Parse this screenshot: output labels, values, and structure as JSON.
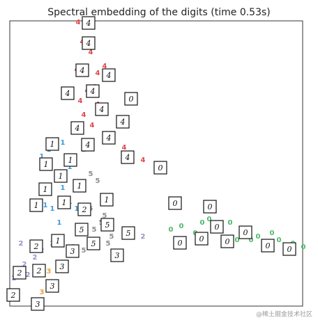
{
  "chart_data": {
    "type": "scatter",
    "title": "Spectral embedding of the digits (time 0.53s)",
    "xlim": [
      0,
      420
    ],
    "ylim": [
      0,
      410
    ],
    "series": [
      {
        "name": "4",
        "color": "#e0474c",
        "x": [
          98,
          116,
          96,
          126,
          111,
          126,
          106,
          94,
          164,
          191,
          118,
          101,
          121,
          136,
          104
        ],
        "y": [
          408,
          365,
          340,
          335,
          310,
          290,
          275,
          255,
          228,
          210,
          260,
          295,
          315,
          345,
          380
        ]
      },
      {
        "name": "1",
        "color": "#3a9ad9",
        "x": [
          76,
          56,
          46,
          86,
          66,
          76,
          56,
          86,
          96,
          51,
          106,
          71,
          61
        ],
        "y": [
          235,
          225,
          215,
          200,
          190,
          170,
          170,
          150,
          140,
          145,
          225,
          120,
          140
        ]
      },
      {
        "name": "5",
        "color": "#8c8c8c",
        "x": [
          116,
          126,
          106,
          136,
          131,
          116,
          146,
          141,
          106,
          121
        ],
        "y": [
          190,
          180,
          170,
          130,
          120,
          140,
          100,
          90,
          80,
          110
        ]
      },
      {
        "name": "2",
        "color": "#9b8fc7",
        "x": [
          16,
          6,
          21,
          36,
          46,
          61,
          191,
          0,
          26
        ],
        "y": [
          90,
          40,
          60,
          70,
          80,
          90,
          100,
          20,
          45
        ]
      },
      {
        "name": "3",
        "color": "#e8a23a",
        "x": [
          56,
          81,
          66,
          96,
          76,
          46,
          91
        ],
        "y": [
          50,
          60,
          30,
          75,
          90,
          20,
          85
        ]
      },
      {
        "name": "0",
        "color": "#4cb86a",
        "x": [
          231,
          246,
          276,
          296,
          316,
          336,
          356,
          376,
          386,
          406,
          421,
          286,
          266,
          346,
          396,
          366,
          326
        ],
        "y": [
          110,
          115,
          120,
          115,
          120,
          110,
          100,
          105,
          95,
          90,
          85,
          125,
          105,
          95,
          85,
          90,
          95
        ]
      }
    ],
    "thumbnails": {
      "labels": [
        "4",
        "4",
        "4",
        "4",
        "4",
        "4",
        "0",
        "4",
        "4",
        "4",
        "4",
        "4",
        "4",
        "0",
        "1",
        "1",
        "1",
        "1",
        "1",
        "1",
        "1",
        "1",
        "1",
        "2",
        "0",
        "0",
        "5",
        "5",
        "5",
        "0",
        "0",
        "1",
        "5",
        "0",
        "0",
        "0",
        "0",
        "0",
        "2",
        "3",
        "3",
        "3",
        "2",
        "2",
        "3",
        "2",
        "3"
      ],
      "x": [
        113,
        113,
        104,
        142,
        83,
        119,
        174,
        132,
        162,
        97,
        142,
        112,
        169,
        216,
        61,
        52,
        87,
        73,
        100,
        51,
        38,
        78,
        139,
        107,
        237,
        287,
        140,
        103,
        170,
        297,
        338,
        69,
        120,
        244,
        275,
        312,
        370,
        401,
        38,
        90,
        154,
        75,
        14,
        42,
        61,
        5,
        40
      ],
      "y": [
        407,
        378,
        339,
        332,
        306,
        309,
        298,
        283,
        265,
        256,
        242,
        232,
        214,
        199,
        233,
        204,
        210,
        187,
        173,
        168,
        145,
        149,
        153,
        139,
        148,
        143,
        117,
        110,
        105,
        114,
        106,
        94,
        90,
        91,
        97,
        93,
        87,
        82,
        86,
        79,
        73,
        57,
        48,
        51,
        29,
        16,
        3
      ]
    },
    "watermark": "@稀土掘金技术社区"
  }
}
